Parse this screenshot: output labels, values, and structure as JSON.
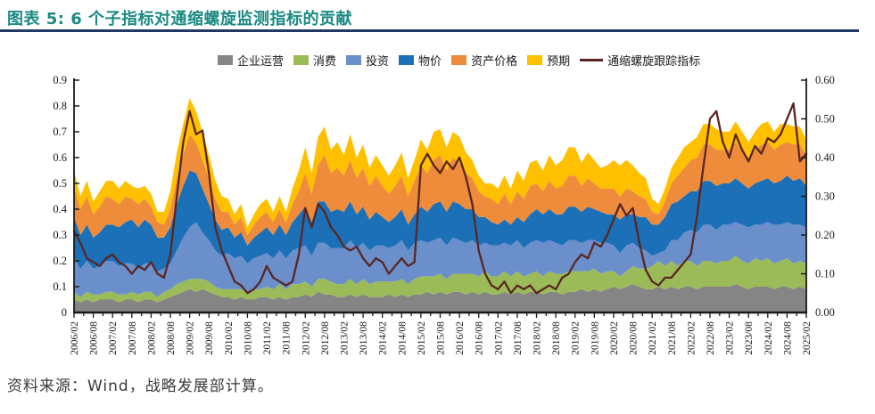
{
  "title": "图表 5: 6 个子指标对通缩螺旋监测指标的贡献",
  "source": "资料来源：Wind，战略发展部计算。",
  "accent_colors": {
    "title_teal": "#1A8A82",
    "rule_navy": "#1F3864"
  },
  "legend": {
    "items": [
      {
        "label": "企业运营",
        "color": "#858585",
        "type": "area"
      },
      {
        "label": "消费",
        "color": "#9BBB59",
        "type": "area"
      },
      {
        "label": "投资",
        "color": "#6A8FCB",
        "type": "area"
      },
      {
        "label": "物价",
        "color": "#1C70B8",
        "type": "area"
      },
      {
        "label": "资产价格",
        "color": "#EE8C3C",
        "type": "area"
      },
      {
        "label": "预期",
        "color": "#FFC000",
        "type": "area"
      },
      {
        "label": "通缩螺旋跟踪指标",
        "color": "#5A2622",
        "type": "line"
      }
    ]
  },
  "chart_data": {
    "type": "area",
    "stacked": true,
    "grid": false,
    "x_start": "2006/02",
    "x_step_months": 2,
    "x_ticks": [
      "2006/02",
      "2006/08",
      "2007/02",
      "2007/08",
      "2008/02",
      "2008/08",
      "2009/02",
      "2009/08",
      "2010/02",
      "2010/08",
      "2011/02",
      "2011/08",
      "2012/02",
      "2012/08",
      "2013/02",
      "2013/08",
      "2014/02",
      "2014/08",
      "2015/02",
      "2015/08",
      "2016/02",
      "2016/08",
      "2017/02",
      "2017/08",
      "2018/02",
      "2018/08",
      "2019/02",
      "2019/08",
      "2020/02",
      "2020/08",
      "2021/02",
      "2021/08",
      "2022/02",
      "2022/08",
      "2023/02",
      "2023/08",
      "2024/02",
      "2024/08",
      "2025/02"
    ],
    "left_axis": {
      "min": 0,
      "max": 0.9,
      "step": 0.1,
      "labels": [
        "0.9",
        "0.8",
        "0.7",
        "0.6",
        "0.5",
        "0.4",
        "0.3",
        "0.2",
        "0.1",
        "0"
      ]
    },
    "right_axis": {
      "min": 0,
      "max": 0.6,
      "step": 0.1,
      "labels": [
        "0.60",
        "0.50",
        "0.40",
        "0.30",
        "0.20",
        "0.10",
        "0.00"
      ]
    },
    "series": [
      {
        "key": "enterprise-operations",
        "name": "企业运营",
        "color": "#858585",
        "values": [
          0.05,
          0.04,
          0.05,
          0.04,
          0.05,
          0.05,
          0.05,
          0.04,
          0.05,
          0.05,
          0.04,
          0.05,
          0.05,
          0.04,
          0.05,
          0.06,
          0.07,
          0.08,
          0.09,
          0.08,
          0.09,
          0.08,
          0.07,
          0.06,
          0.06,
          0.05,
          0.06,
          0.05,
          0.05,
          0.06,
          0.06,
          0.05,
          0.06,
          0.05,
          0.06,
          0.06,
          0.07,
          0.06,
          0.08,
          0.07,
          0.07,
          0.06,
          0.06,
          0.07,
          0.06,
          0.07,
          0.06,
          0.06,
          0.06,
          0.07,
          0.06,
          0.07,
          0.06,
          0.07,
          0.07,
          0.08,
          0.07,
          0.08,
          0.07,
          0.08,
          0.08,
          0.07,
          0.08,
          0.07,
          0.08,
          0.07,
          0.07,
          0.08,
          0.07,
          0.08,
          0.07,
          0.08,
          0.08,
          0.07,
          0.08,
          0.08,
          0.07,
          0.08,
          0.08,
          0.09,
          0.08,
          0.09,
          0.08,
          0.09,
          0.1,
          0.09,
          0.1,
          0.11,
          0.1,
          0.09,
          0.09,
          0.1,
          0.09,
          0.1,
          0.09,
          0.1,
          0.1,
          0.09,
          0.1,
          0.1,
          0.1,
          0.1,
          0.1,
          0.11,
          0.1,
          0.09,
          0.1,
          0.1,
          0.1,
          0.09,
          0.1,
          0.1,
          0.09,
          0.1,
          0.09
        ]
      },
      {
        "key": "consumption",
        "name": "消费",
        "color": "#9BBB59",
        "values": [
          0.03,
          0.02,
          0.03,
          0.03,
          0.02,
          0.03,
          0.03,
          0.03,
          0.02,
          0.03,
          0.03,
          0.03,
          0.03,
          0.02,
          0.03,
          0.03,
          0.04,
          0.04,
          0.04,
          0.05,
          0.04,
          0.04,
          0.03,
          0.03,
          0.03,
          0.04,
          0.03,
          0.03,
          0.04,
          0.03,
          0.04,
          0.04,
          0.05,
          0.04,
          0.05,
          0.05,
          0.05,
          0.04,
          0.05,
          0.06,
          0.05,
          0.05,
          0.05,
          0.06,
          0.05,
          0.06,
          0.05,
          0.06,
          0.06,
          0.05,
          0.06,
          0.06,
          0.05,
          0.06,
          0.07,
          0.06,
          0.07,
          0.07,
          0.06,
          0.07,
          0.07,
          0.08,
          0.07,
          0.07,
          0.08,
          0.07,
          0.07,
          0.08,
          0.07,
          0.08,
          0.07,
          0.07,
          0.08,
          0.07,
          0.08,
          0.07,
          0.08,
          0.08,
          0.08,
          0.07,
          0.08,
          0.08,
          0.07,
          0.07,
          0.06,
          0.05,
          0.06,
          0.07,
          0.07,
          0.08,
          0.09,
          0.1,
          0.09,
          0.1,
          0.09,
          0.1,
          0.1,
          0.09,
          0.1,
          0.1,
          0.09,
          0.1,
          0.1,
          0.11,
          0.1,
          0.1,
          0.11,
          0.1,
          0.11,
          0.1,
          0.1,
          0.11,
          0.1,
          0.1,
          0.1
        ]
      },
      {
        "key": "investment",
        "name": "投资",
        "color": "#6A8FCB",
        "values": [
          0.13,
          0.11,
          0.12,
          0.1,
          0.11,
          0.12,
          0.12,
          0.11,
          0.12,
          0.11,
          0.1,
          0.11,
          0.11,
          0.1,
          0.09,
          0.1,
          0.13,
          0.17,
          0.2,
          0.22,
          0.18,
          0.16,
          0.14,
          0.13,
          0.14,
          0.12,
          0.13,
          0.11,
          0.12,
          0.13,
          0.13,
          0.12,
          0.13,
          0.12,
          0.13,
          0.14,
          0.14,
          0.12,
          0.14,
          0.14,
          0.13,
          0.14,
          0.14,
          0.15,
          0.14,
          0.14,
          0.13,
          0.14,
          0.14,
          0.13,
          0.14,
          0.15,
          0.13,
          0.14,
          0.14,
          0.13,
          0.14,
          0.14,
          0.13,
          0.14,
          0.13,
          0.12,
          0.13,
          0.12,
          0.11,
          0.12,
          0.12,
          0.11,
          0.12,
          0.12,
          0.11,
          0.12,
          0.12,
          0.13,
          0.12,
          0.12,
          0.11,
          0.12,
          0.12,
          0.11,
          0.12,
          0.11,
          0.12,
          0.11,
          0.1,
          0.09,
          0.1,
          0.09,
          0.08,
          0.07,
          0.04,
          0.03,
          0.06,
          0.08,
          0.1,
          0.11,
          0.12,
          0.13,
          0.14,
          0.14,
          0.13,
          0.14,
          0.14,
          0.13,
          0.14,
          0.14,
          0.13,
          0.14,
          0.14,
          0.15,
          0.14,
          0.14,
          0.15,
          0.14,
          0.14
        ]
      },
      {
        "key": "prices",
        "name": "物价",
        "color": "#1C70B8",
        "values": [
          0.16,
          0.13,
          0.14,
          0.12,
          0.13,
          0.14,
          0.14,
          0.15,
          0.16,
          0.17,
          0.16,
          0.17,
          0.15,
          0.13,
          0.12,
          0.14,
          0.18,
          0.2,
          0.22,
          0.19,
          0.17,
          0.14,
          0.12,
          0.1,
          0.1,
          0.08,
          0.09,
          0.07,
          0.08,
          0.09,
          0.1,
          0.09,
          0.1,
          0.09,
          0.11,
          0.13,
          0.15,
          0.13,
          0.16,
          0.16,
          0.14,
          0.15,
          0.14,
          0.15,
          0.13,
          0.14,
          0.12,
          0.13,
          0.11,
          0.1,
          0.11,
          0.12,
          0.1,
          0.11,
          0.13,
          0.12,
          0.14,
          0.14,
          0.13,
          0.14,
          0.14,
          0.13,
          0.12,
          0.11,
          0.1,
          0.09,
          0.08,
          0.09,
          0.08,
          0.09,
          0.1,
          0.11,
          0.12,
          0.11,
          0.12,
          0.11,
          0.12,
          0.13,
          0.13,
          0.12,
          0.13,
          0.12,
          0.12,
          0.11,
          0.12,
          0.13,
          0.12,
          0.11,
          0.12,
          0.13,
          0.12,
          0.11,
          0.13,
          0.14,
          0.15,
          0.14,
          0.15,
          0.16,
          0.17,
          0.17,
          0.17,
          0.16,
          0.16,
          0.17,
          0.16,
          0.15,
          0.16,
          0.17,
          0.17,
          0.16,
          0.17,
          0.18,
          0.17,
          0.18,
          0.16
        ]
      },
      {
        "key": "asset-prices",
        "name": "资产价格",
        "color": "#EE8C3C",
        "values": [
          0.12,
          0.1,
          0.11,
          0.09,
          0.1,
          0.11,
          0.1,
          0.09,
          0.1,
          0.08,
          0.09,
          0.08,
          0.07,
          0.06,
          0.05,
          0.07,
          0.1,
          0.12,
          0.14,
          0.12,
          0.11,
          0.1,
          0.08,
          0.07,
          0.06,
          0.05,
          0.06,
          0.04,
          0.05,
          0.06,
          0.06,
          0.05,
          0.06,
          0.05,
          0.07,
          0.09,
          0.13,
          0.11,
          0.14,
          0.18,
          0.15,
          0.16,
          0.14,
          0.16,
          0.14,
          0.15,
          0.13,
          0.14,
          0.12,
          0.11,
          0.12,
          0.13,
          0.11,
          0.13,
          0.16,
          0.15,
          0.17,
          0.18,
          0.16,
          0.17,
          0.16,
          0.14,
          0.12,
          0.1,
          0.08,
          0.09,
          0.08,
          0.1,
          0.08,
          0.1,
          0.09,
          0.11,
          0.1,
          0.09,
          0.11,
          0.1,
          0.11,
          0.12,
          0.12,
          0.1,
          0.11,
          0.1,
          0.09,
          0.1,
          0.1,
          0.09,
          0.1,
          0.09,
          0.08,
          0.07,
          0.05,
          0.04,
          0.06,
          0.08,
          0.1,
          0.11,
          0.12,
          0.13,
          0.14,
          0.14,
          0.14,
          0.13,
          0.13,
          0.14,
          0.13,
          0.12,
          0.13,
          0.14,
          0.14,
          0.13,
          0.14,
          0.13,
          0.14,
          0.13,
          0.12
        ]
      },
      {
        "key": "expectations",
        "name": "预期",
        "color": "#FFC000",
        "values": [
          0.06,
          0.05,
          0.06,
          0.05,
          0.06,
          0.06,
          0.07,
          0.06,
          0.06,
          0.05,
          0.06,
          0.05,
          0.05,
          0.04,
          0.05,
          0.07,
          0.1,
          0.12,
          0.14,
          0.12,
          0.11,
          0.09,
          0.07,
          0.06,
          0.05,
          0.04,
          0.05,
          0.03,
          0.04,
          0.05,
          0.05,
          0.04,
          0.05,
          0.04,
          0.06,
          0.08,
          0.1,
          0.08,
          0.11,
          0.11,
          0.09,
          0.1,
          0.08,
          0.1,
          0.08,
          0.09,
          0.07,
          0.08,
          0.08,
          0.07,
          0.08,
          0.09,
          0.07,
          0.08,
          0.1,
          0.09,
          0.11,
          0.1,
          0.09,
          0.1,
          0.1,
          0.08,
          0.07,
          0.06,
          0.05,
          0.06,
          0.06,
          0.07,
          0.06,
          0.08,
          0.07,
          0.09,
          0.09,
          0.08,
          0.1,
          0.09,
          0.1,
          0.11,
          0.11,
          0.09,
          0.1,
          0.09,
          0.08,
          0.09,
          0.11,
          0.12,
          0.11,
          0.1,
          0.09,
          0.08,
          0.05,
          0.04,
          0.05,
          0.06,
          0.07,
          0.08,
          0.07,
          0.08,
          0.08,
          0.08,
          0.08,
          0.07,
          0.07,
          0.08,
          0.07,
          0.06,
          0.07,
          0.08,
          0.08,
          0.07,
          0.08,
          0.07,
          0.07,
          0.07,
          0.06
        ]
      }
    ],
    "line": {
      "key": "deflation-spiral-tracker",
      "name": "通缩螺旋跟踪指标",
      "color": "#5A2622",
      "axis": "right",
      "values": [
        0.21,
        0.18,
        0.14,
        0.13,
        0.12,
        0.14,
        0.15,
        0.13,
        0.12,
        0.1,
        0.12,
        0.11,
        0.13,
        0.1,
        0.09,
        0.15,
        0.3,
        0.44,
        0.52,
        0.46,
        0.47,
        0.36,
        0.22,
        0.16,
        0.12,
        0.08,
        0.07,
        0.05,
        0.06,
        0.08,
        0.12,
        0.09,
        0.08,
        0.07,
        0.08,
        0.15,
        0.27,
        0.22,
        0.28,
        0.26,
        0.22,
        0.2,
        0.17,
        0.16,
        0.17,
        0.14,
        0.12,
        0.14,
        0.13,
        0.1,
        0.12,
        0.14,
        0.12,
        0.13,
        0.38,
        0.41,
        0.38,
        0.36,
        0.39,
        0.37,
        0.4,
        0.35,
        0.28,
        0.16,
        0.1,
        0.07,
        0.06,
        0.08,
        0.05,
        0.07,
        0.06,
        0.07,
        0.05,
        0.06,
        0.07,
        0.06,
        0.09,
        0.1,
        0.13,
        0.15,
        0.14,
        0.18,
        0.17,
        0.2,
        0.24,
        0.28,
        0.25,
        0.27,
        0.18,
        0.11,
        0.08,
        0.07,
        0.09,
        0.09,
        0.11,
        0.13,
        0.15,
        0.25,
        0.38,
        0.5,
        0.52,
        0.44,
        0.4,
        0.46,
        0.42,
        0.39,
        0.43,
        0.41,
        0.45,
        0.44,
        0.46,
        0.5,
        0.54,
        0.39,
        0.41
      ]
    }
  }
}
